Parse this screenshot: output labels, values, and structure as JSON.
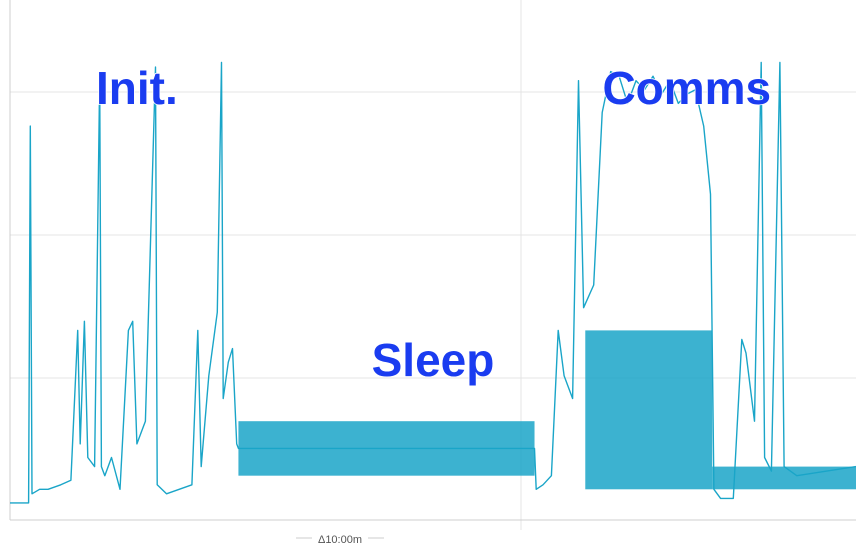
{
  "chart_data": {
    "type": "line",
    "title": "",
    "xlabel": "",
    "ylabel": "",
    "grid": true,
    "scale_label": "Δ10:00m",
    "series_color": "#1aa5c8",
    "label_color": "#1a3cf0",
    "annotations": [
      {
        "text": "Init.",
        "phase": "init",
        "x": 0.15,
        "y": 0.93
      },
      {
        "text": "Sleep",
        "phase": "sleep",
        "x": 0.5,
        "y": 0.33
      },
      {
        "text": "Comms",
        "phase": "comms",
        "x": 0.8,
        "y": 0.93
      }
    ],
    "xlim": [
      0,
      1
    ],
    "ylim": [
      0,
      1
    ],
    "series": [
      {
        "values": [
          [
            0.0,
            0.02
          ],
          [
            0.015,
            0.02
          ],
          [
            0.022,
            0.02
          ],
          [
            0.024,
            0.85
          ],
          [
            0.026,
            0.04
          ],
          [
            0.035,
            0.05
          ],
          [
            0.045,
            0.05
          ],
          [
            0.06,
            0.06
          ],
          [
            0.072,
            0.07
          ],
          [
            0.08,
            0.4
          ],
          [
            0.083,
            0.15
          ],
          [
            0.088,
            0.42
          ],
          [
            0.092,
            0.12
          ],
          [
            0.1,
            0.1
          ],
          [
            0.106,
            0.96
          ],
          [
            0.108,
            0.1
          ],
          [
            0.112,
            0.08
          ],
          [
            0.12,
            0.12
          ],
          [
            0.13,
            0.05
          ],
          [
            0.14,
            0.4
          ],
          [
            0.145,
            0.42
          ],
          [
            0.15,
            0.15
          ],
          [
            0.156,
            0.18
          ],
          [
            0.16,
            0.2
          ],
          [
            0.172,
            0.98
          ],
          [
            0.174,
            0.06
          ],
          [
            0.185,
            0.04
          ],
          [
            0.2,
            0.05
          ],
          [
            0.215,
            0.06
          ],
          [
            0.222,
            0.4
          ],
          [
            0.226,
            0.1
          ],
          [
            0.235,
            0.3
          ],
          [
            0.245,
            0.44
          ],
          [
            0.25,
            0.99
          ],
          [
            0.252,
            0.25
          ],
          [
            0.258,
            0.33
          ],
          [
            0.263,
            0.36
          ],
          [
            0.268,
            0.15
          ],
          [
            0.27,
            0.14
          ],
          [
            0.62,
            0.14
          ],
          [
            0.622,
            0.05
          ],
          [
            0.63,
            0.06
          ],
          [
            0.64,
            0.08
          ],
          [
            0.648,
            0.4
          ],
          [
            0.655,
            0.3
          ],
          [
            0.665,
            0.25
          ],
          [
            0.672,
            0.95
          ],
          [
            0.678,
            0.45
          ],
          [
            0.69,
            0.5
          ],
          [
            0.7,
            0.88
          ],
          [
            0.71,
            0.97
          ],
          [
            0.72,
            0.96
          ],
          [
            0.73,
            0.9
          ],
          [
            0.74,
            0.95
          ],
          [
            0.75,
            0.93
          ],
          [
            0.76,
            0.96
          ],
          [
            0.77,
            0.92
          ],
          [
            0.78,
            0.95
          ],
          [
            0.79,
            0.9
          ],
          [
            0.8,
            0.92
          ],
          [
            0.81,
            0.93
          ],
          [
            0.82,
            0.85
          ],
          [
            0.828,
            0.7
          ],
          [
            0.832,
            0.05
          ],
          [
            0.84,
            0.03
          ],
          [
            0.855,
            0.03
          ],
          [
            0.865,
            0.38
          ],
          [
            0.87,
            0.35
          ],
          [
            0.88,
            0.2
          ],
          [
            0.888,
            0.99
          ],
          [
            0.892,
            0.12
          ],
          [
            0.9,
            0.09
          ],
          [
            0.91,
            0.99
          ],
          [
            0.915,
            0.1
          ],
          [
            0.93,
            0.08
          ],
          [
            1.0,
            0.1
          ]
        ]
      }
    ]
  }
}
